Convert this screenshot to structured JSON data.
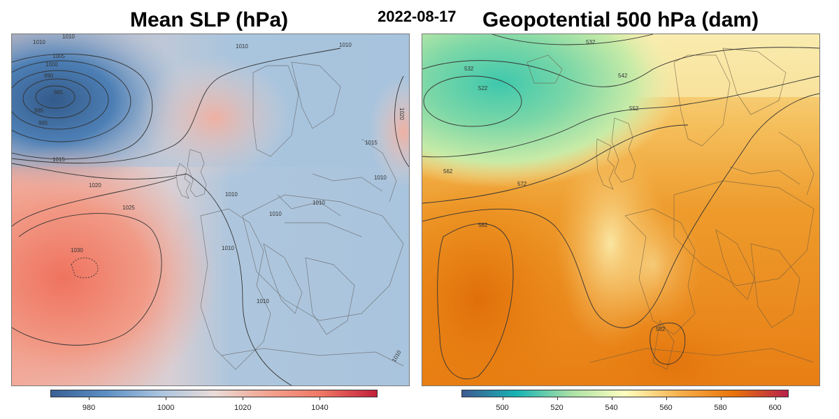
{
  "header": {
    "left_title": "Mean SLP (hPa)",
    "date": "2022-08-17",
    "right_title": "Geopotential 500 hPa (dam)"
  },
  "slp_map": {
    "colorbar": {
      "min": 970,
      "max": 1055,
      "ticks": [
        980,
        1000,
        1020,
        1040
      ],
      "colors": [
        "#3a6196",
        "#5b8ec4",
        "#a9c4df",
        "#e9dcd9",
        "#f3a38f",
        "#ef7563",
        "#c21f3b"
      ]
    },
    "contour_labels": [
      {
        "text": "1010"
      },
      {
        "text": "1010"
      },
      {
        "text": "1005"
      },
      {
        "text": "1000"
      },
      {
        "text": "990"
      },
      {
        "text": "985"
      },
      {
        "text": "985"
      },
      {
        "text": "995"
      },
      {
        "text": "1010"
      },
      {
        "text": "1010"
      },
      {
        "text": "1020"
      },
      {
        "text": "1015"
      },
      {
        "text": "1015"
      },
      {
        "text": "1020"
      },
      {
        "text": "1025"
      },
      {
        "text": "1030"
      },
      {
        "text": "1010"
      },
      {
        "text": "1010"
      },
      {
        "text": "1010"
      },
      {
        "text": "1010"
      },
      {
        "text": "1010"
      },
      {
        "text": "1010"
      },
      {
        "text": "1010"
      }
    ],
    "features": {
      "low": "Deep low west of Ireland (~985 hPa)",
      "high": "Azores high (~1030 hPa)"
    }
  },
  "z500_map": {
    "colorbar": {
      "min": 485,
      "max": 605,
      "ticks": [
        500,
        520,
        540,
        560,
        580,
        600
      ],
      "colors": [
        "#3d5a93",
        "#18b3b4",
        "#a8e1a5",
        "#ffffbf",
        "#f7b04c",
        "#e8740b",
        "#b8214b"
      ]
    },
    "contour_labels": [
      {
        "text": "532"
      },
      {
        "text": "532"
      },
      {
        "text": "522"
      },
      {
        "text": "542"
      },
      {
        "text": "552"
      },
      {
        "text": "562"
      },
      {
        "text": "572"
      },
      {
        "text": "582"
      },
      {
        "text": "582"
      }
    ]
  }
}
